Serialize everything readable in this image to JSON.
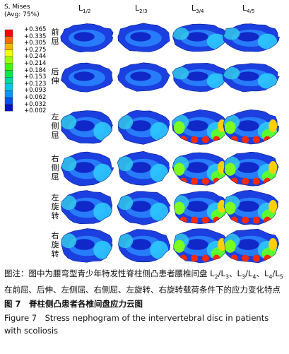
{
  "legend": {
    "title": "S, Mises",
    "subtitle": "(Avg: 75%)",
    "values": [
      "+0.365",
      "+0.335",
      "+0.305",
      "+0.275",
      "+0.244",
      "+0.214",
      "+0.184",
      "+0.153",
      "+0.123",
      "+0.093",
      "+0.062",
      "+0.032",
      "+0.002"
    ]
  },
  "columns": [
    {
      "main": "L",
      "sub": "1/2"
    },
    {
      "main": "L",
      "sub": "2/3"
    },
    {
      "main": "L",
      "sub": "3/4"
    },
    {
      "main": "L",
      "sub": "4/5"
    }
  ],
  "rows": [
    "前屈",
    "后伸",
    "左侧屈",
    "右侧屈",
    "左旋转",
    "右旋转"
  ],
  "caption": {
    "note": [
      {
        "t": "图注：图中为腰弯型青少年特发性脊柱侧凸患者腰椎间盘 L"
      },
      {
        "s": "2"
      },
      {
        "t": "/L"
      },
      {
        "s": "3"
      },
      {
        "t": "、L"
      },
      {
        "s": "3"
      },
      {
        "t": "/L"
      },
      {
        "s": "4"
      },
      {
        "t": "、L"
      },
      {
        "s": "4"
      },
      {
        "t": "/L"
      },
      {
        "s": "5"
      },
      {
        "t": " 在前屈、后伸、左侧屈、右侧屈、左旋转、右旋转载荷条件下的应力变化特点"
      }
    ],
    "figure_cn": "图 7　脊柱侧凸患者各椎间盘应力云图",
    "figure_en": "Figure 7　Stress nephogram of the intervertebral disc in patients with scoliosis"
  }
}
